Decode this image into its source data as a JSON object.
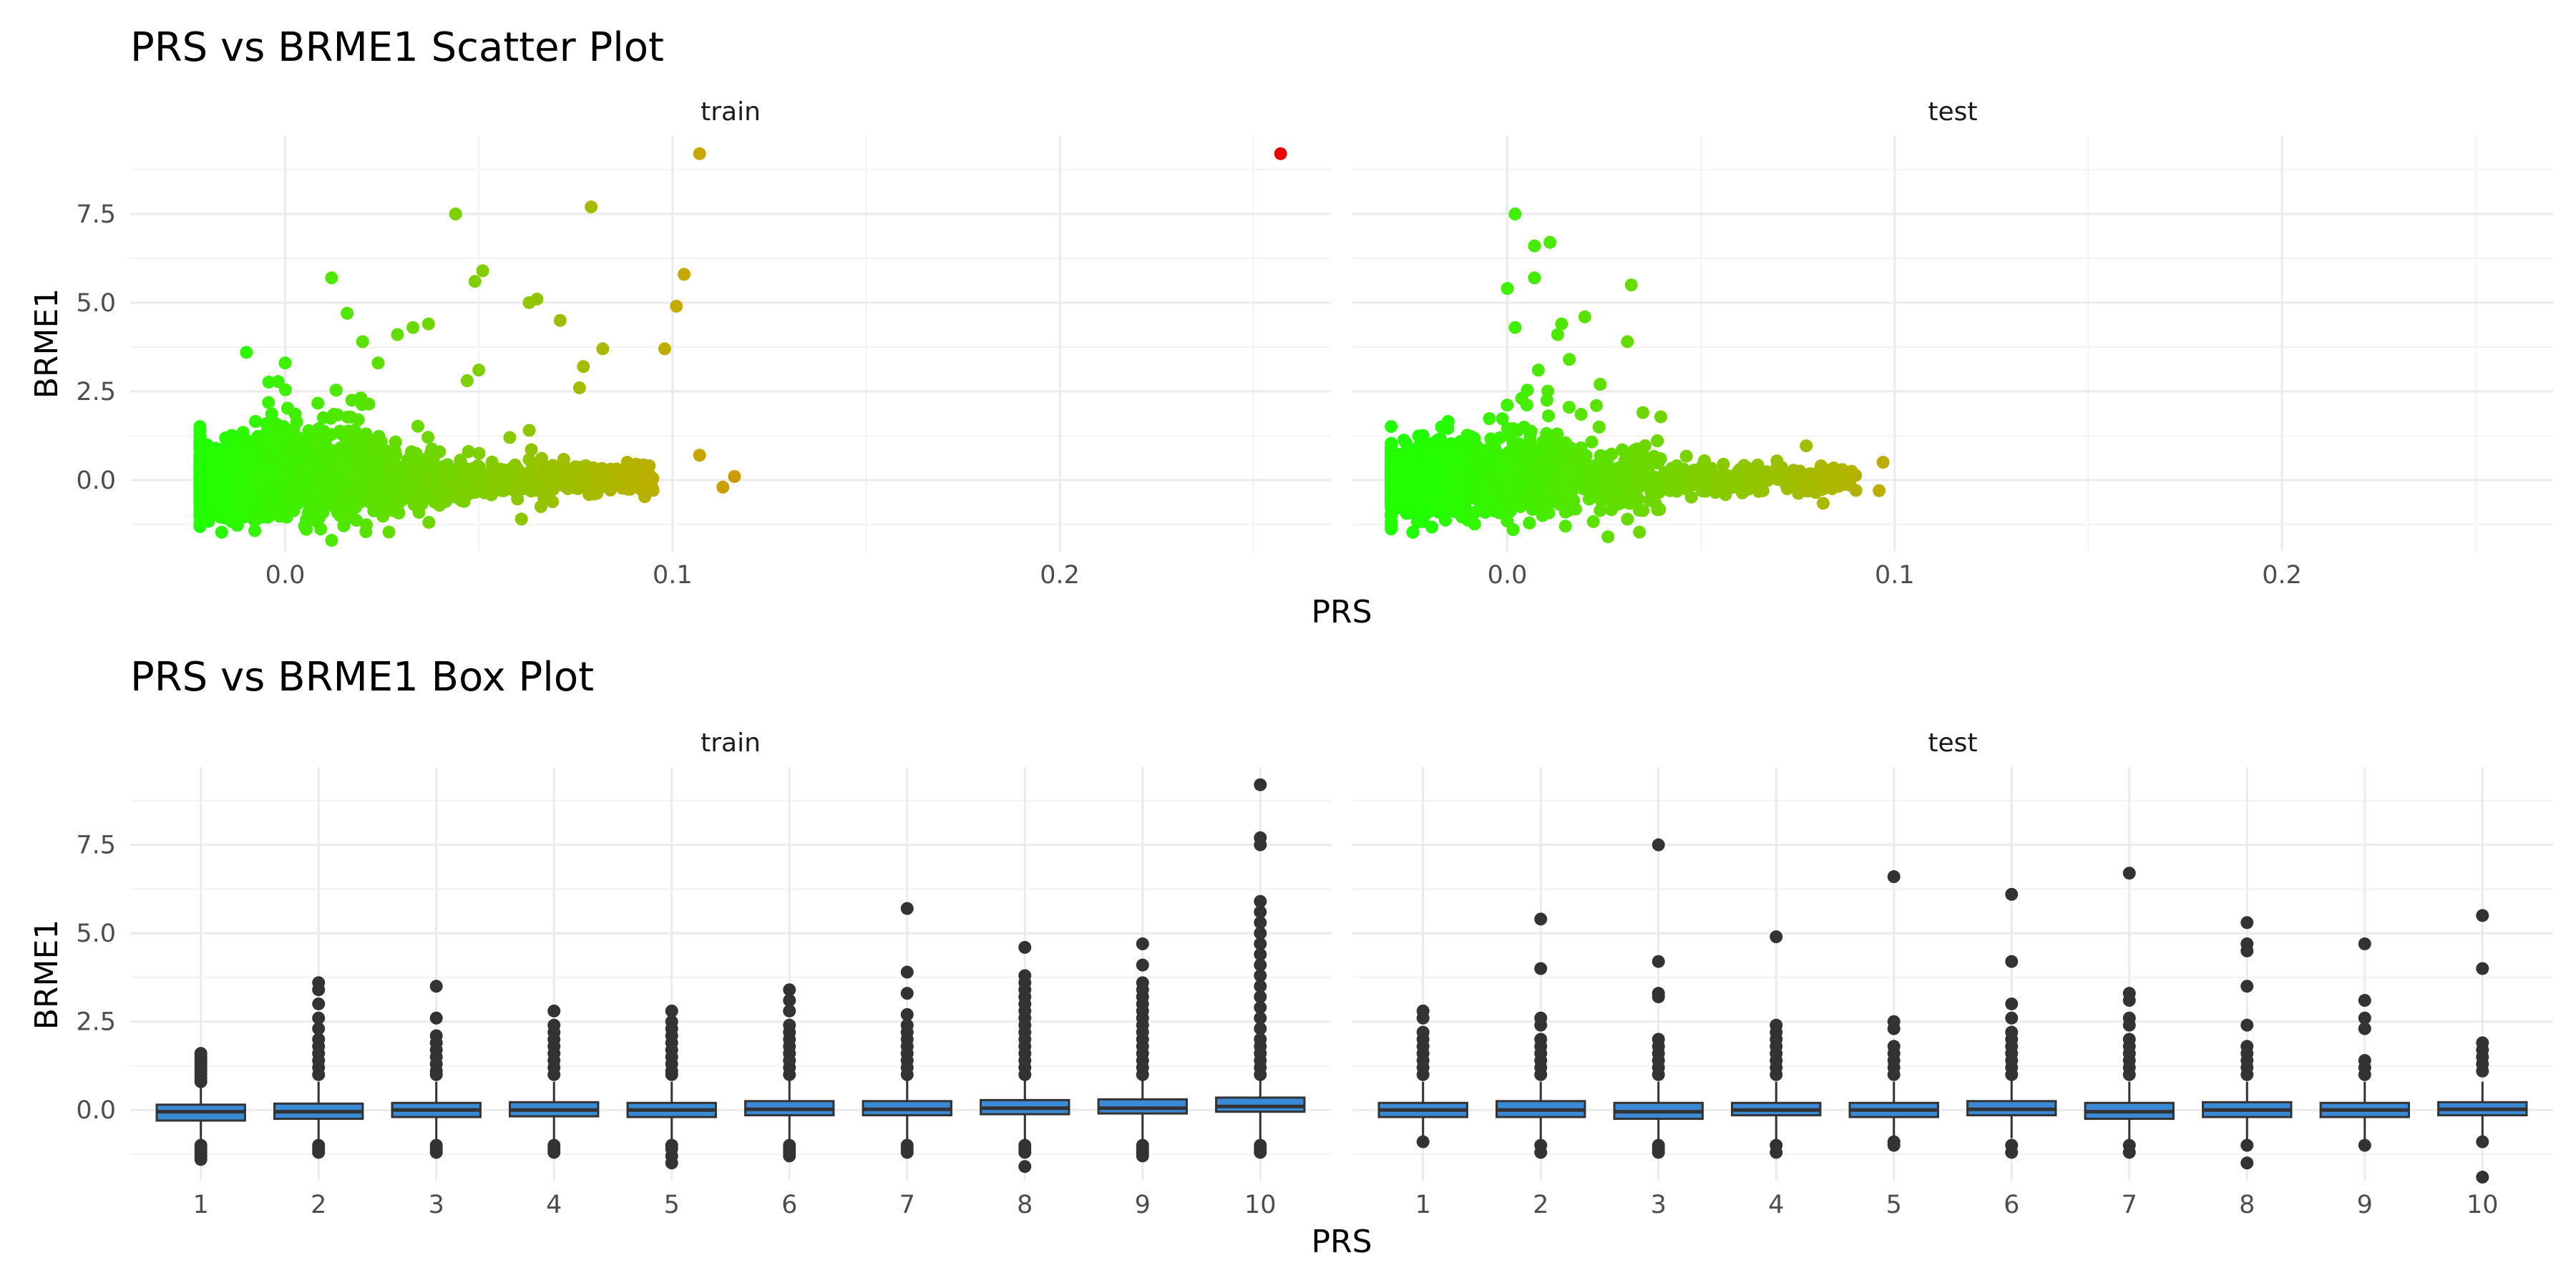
{
  "chart_data": [
    {
      "type": "scatter",
      "title": "PRS vs BRME1 Scatter Plot",
      "xlabel": "PRS",
      "ylabel": "BRME1",
      "facets": [
        "train",
        "test"
      ],
      "xlim": [
        -0.04,
        0.27
      ],
      "ylim": [
        -2.0,
        9.7
      ],
      "x_ticks": [
        "0.0",
        "0.1",
        "0.2"
      ],
      "y_ticks": [
        "0.0",
        "2.5",
        "5.0",
        "7.5"
      ],
      "color_scale": {
        "low": "#22ff00",
        "high": "#ee0000"
      },
      "grid": true,
      "series": [
        {
          "facet": "train",
          "points": [
            [
              0.257,
              9.2
            ],
            [
              0.107,
              9.2
            ],
            [
              0.079,
              7.7
            ],
            [
              0.044,
              7.5
            ],
            [
              0.103,
              5.8
            ],
            [
              0.012,
              5.7
            ],
            [
              0.051,
              5.9
            ],
            [
              0.049,
              5.6
            ],
            [
              0.063,
              5.0
            ],
            [
              0.065,
              5.1
            ],
            [
              0.101,
              4.9
            ],
            [
              0.071,
              4.5
            ],
            [
              0.037,
              4.4
            ],
            [
              0.033,
              4.3
            ],
            [
              0.029,
              4.1
            ],
            [
              0.016,
              4.7
            ],
            [
              0.098,
              3.7
            ],
            [
              0.082,
              3.7
            ],
            [
              0.077,
              3.2
            ],
            [
              0.076,
              2.6
            ],
            [
              0.05,
              3.1
            ],
            [
              0.047,
              2.8
            ],
            [
              0.063,
              1.4
            ],
            [
              0.058,
              1.2
            ],
            [
              0.107,
              0.7
            ],
            [
              0.116,
              0.1
            ],
            [
              0.113,
              -0.2
            ],
            [
              0.094,
              0.4
            ],
            [
              0.061,
              -1.1
            ],
            [
              0.012,
              -1.7
            ],
            [
              0.005,
              -1.3
            ],
            [
              -0.01,
              3.6
            ],
            [
              0.0,
              3.3
            ],
            [
              0.02,
              3.9
            ],
            [
              0.024,
              3.3
            ]
          ]
        },
        {
          "facet": "test",
          "points": [
            [
              0.002,
              7.5
            ],
            [
              0.011,
              6.7
            ],
            [
              0.007,
              6.6
            ],
            [
              0.007,
              5.7
            ],
            [
              0.032,
              5.5
            ],
            [
              0.0,
              5.4
            ],
            [
              0.02,
              4.6
            ],
            [
              0.014,
              4.4
            ],
            [
              0.002,
              4.3
            ],
            [
              0.013,
              4.1
            ],
            [
              0.031,
              3.9
            ],
            [
              0.016,
              3.4
            ],
            [
              0.008,
              3.1
            ],
            [
              0.023,
              2.1
            ],
            [
              0.035,
              1.9
            ],
            [
              -0.017,
              1.5
            ],
            [
              -0.026,
              0.3
            ],
            [
              0.097,
              0.5
            ],
            [
              0.096,
              -0.3
            ],
            [
              0.081,
              0.4
            ],
            [
              0.026,
              -1.6
            ],
            [
              0.015,
              -1.3
            ],
            [
              0.066,
              -0.3
            ],
            [
              0.06,
              0.3
            ]
          ]
        }
      ],
      "dense_cloud": {
        "train": {
          "x_range": [
            -0.022,
            0.095
          ],
          "y_center": 0.0,
          "y_spread": 0.5
        },
        "test": {
          "x_range": [
            -0.03,
            0.09
          ],
          "y_center": 0.0,
          "y_spread": 0.5
        }
      }
    },
    {
      "type": "box",
      "title": "PRS vs BRME1 Box Plot",
      "xlabel": "PRS",
      "ylabel": "BRME1",
      "facets": [
        "train",
        "test"
      ],
      "ylim": [
        -2.0,
        9.7
      ],
      "y_ticks": [
        "0.0",
        "2.5",
        "5.0",
        "7.5"
      ],
      "categories": [
        "1",
        "2",
        "3",
        "4",
        "5",
        "6",
        "7",
        "8",
        "9",
        "10"
      ],
      "fill_color": "#3a8ad6",
      "grid": true,
      "series": [
        {
          "facet": "train",
          "boxes": [
            {
              "q1": -0.3,
              "median": -0.05,
              "q3": 0.15,
              "wlo": -0.9,
              "whi": 0.7,
              "outliers": [
                1.6,
                1.5,
                1.4,
                1.3,
                1.2,
                1.1,
                1.0,
                0.9,
                0.8,
                -1.0,
                -1.1,
                -1.2,
                -1.3,
                -1.4
              ]
            },
            {
              "q1": -0.25,
              "median": -0.05,
              "q3": 0.18,
              "wlo": -0.9,
              "whi": 0.8,
              "outliers": [
                3.6,
                3.4,
                3.0,
                2.6,
                2.3,
                2.0,
                1.8,
                1.6,
                1.4,
                1.2,
                1.0,
                -1.0,
                -1.1,
                -1.2
              ]
            },
            {
              "q1": -0.2,
              "median": 0.0,
              "q3": 0.2,
              "wlo": -0.9,
              "whi": 0.8,
              "outliers": [
                3.5,
                2.6,
                2.1,
                1.9,
                1.7,
                1.5,
                1.3,
                1.1,
                1.0,
                -1.0,
                -1.1,
                -1.2
              ]
            },
            {
              "q1": -0.18,
              "median": 0.0,
              "q3": 0.22,
              "wlo": -0.9,
              "whi": 0.8,
              "outliers": [
                2.8,
                2.4,
                2.2,
                2.0,
                1.8,
                1.6,
                1.4,
                1.2,
                1.0,
                -1.0,
                -1.1,
                -1.2
              ]
            },
            {
              "q1": -0.2,
              "median": 0.0,
              "q3": 0.2,
              "wlo": -0.9,
              "whi": 0.8,
              "outliers": [
                2.8,
                2.5,
                2.3,
                2.1,
                1.9,
                1.7,
                1.5,
                1.3,
                1.1,
                1.0,
                -1.0,
                -1.1,
                -1.3,
                -1.5
              ]
            },
            {
              "q1": -0.15,
              "median": 0.02,
              "q3": 0.25,
              "wlo": -0.9,
              "whi": 0.9,
              "outliers": [
                3.4,
                3.1,
                2.8,
                2.4,
                2.2,
                2.0,
                1.8,
                1.6,
                1.4,
                1.2,
                1.0,
                -1.0,
                -1.1,
                -1.2,
                -1.3
              ]
            },
            {
              "q1": -0.15,
              "median": 0.02,
              "q3": 0.25,
              "wlo": -0.9,
              "whi": 0.9,
              "outliers": [
                5.7,
                3.9,
                3.3,
                2.7,
                2.4,
                2.2,
                2.0,
                1.8,
                1.6,
                1.4,
                1.2,
                1.0,
                -1.0,
                -1.1,
                -1.2
              ]
            },
            {
              "q1": -0.12,
              "median": 0.05,
              "q3": 0.28,
              "wlo": -0.9,
              "whi": 0.9,
              "outliers": [
                4.6,
                3.8,
                3.6,
                3.4,
                3.2,
                3.0,
                2.8,
                2.6,
                2.4,
                2.2,
                2.0,
                1.8,
                1.6,
                1.4,
                1.2,
                1.0,
                -1.0,
                -1.1,
                -1.2,
                -1.6
              ]
            },
            {
              "q1": -0.1,
              "median": 0.05,
              "q3": 0.3,
              "wlo": -0.9,
              "whi": 0.9,
              "outliers": [
                4.7,
                4.1,
                3.6,
                3.4,
                3.2,
                3.0,
                2.8,
                2.6,
                2.4,
                2.2,
                2.0,
                1.8,
                1.6,
                1.4,
                1.2,
                1.0,
                -1.0,
                -1.1,
                -1.2,
                -1.3
              ]
            },
            {
              "q1": -0.05,
              "median": 0.1,
              "q3": 0.35,
              "wlo": -0.9,
              "whi": 0.9,
              "outliers": [
                9.2,
                7.7,
                7.5,
                5.9,
                5.6,
                5.3,
                5.0,
                4.7,
                4.4,
                4.1,
                3.8,
                3.5,
                3.2,
                2.9,
                2.6,
                2.3,
                2.0,
                1.8,
                1.6,
                1.4,
                1.2,
                1.0,
                -1.0,
                -1.1,
                -1.2
              ]
            }
          ]
        },
        {
          "facet": "test",
          "boxes": [
            {
              "q1": -0.2,
              "median": 0.0,
              "q3": 0.2,
              "wlo": -0.8,
              "whi": 0.8,
              "outliers": [
                2.8,
                2.6,
                2.2,
                2.0,
                1.8,
                1.6,
                1.4,
                1.2,
                1.0,
                -0.9
              ]
            },
            {
              "q1": -0.2,
              "median": 0.0,
              "q3": 0.25,
              "wlo": -0.9,
              "whi": 0.8,
              "outliers": [
                5.4,
                4.0,
                2.6,
                2.4,
                2.0,
                1.8,
                1.6,
                1.4,
                1.2,
                1.0,
                -1.0,
                -1.2
              ]
            },
            {
              "q1": -0.25,
              "median": -0.05,
              "q3": 0.2,
              "wlo": -0.9,
              "whi": 0.8,
              "outliers": [
                7.5,
                4.2,
                3.3,
                3.2,
                2.0,
                1.8,
                1.6,
                1.4,
                1.2,
                1.0,
                -1.0,
                -1.1,
                -1.2
              ]
            },
            {
              "q1": -0.15,
              "median": 0.0,
              "q3": 0.2,
              "wlo": -0.9,
              "whi": 0.8,
              "outliers": [
                4.9,
                2.4,
                2.2,
                2.0,
                1.8,
                1.6,
                1.4,
                1.2,
                1.0,
                -1.0,
                -1.2
              ]
            },
            {
              "q1": -0.2,
              "median": 0.0,
              "q3": 0.2,
              "wlo": -0.8,
              "whi": 0.8,
              "outliers": [
                6.6,
                2.5,
                2.3,
                1.8,
                1.6,
                1.4,
                1.2,
                1.0,
                -0.9,
                -1.0
              ]
            },
            {
              "q1": -0.15,
              "median": 0.02,
              "q3": 0.25,
              "wlo": -0.8,
              "whi": 0.9,
              "outliers": [
                6.1,
                4.2,
                3.0,
                2.6,
                2.2,
                2.0,
                1.8,
                1.6,
                1.4,
                1.2,
                1.0,
                -1.0,
                -1.2
              ]
            },
            {
              "q1": -0.25,
              "median": -0.05,
              "q3": 0.2,
              "wlo": -0.9,
              "whi": 0.8,
              "outliers": [
                6.7,
                3.3,
                3.1,
                2.6,
                2.4,
                2.0,
                1.8,
                1.6,
                1.4,
                1.2,
                1.0,
                -1.0,
                -1.2
              ]
            },
            {
              "q1": -0.2,
              "median": 0.0,
              "q3": 0.22,
              "wlo": -0.9,
              "whi": 0.8,
              "outliers": [
                5.3,
                4.7,
                4.5,
                3.5,
                2.4,
                1.8,
                1.6,
                1.4,
                1.2,
                1.0,
                -1.0,
                -1.5
              ]
            },
            {
              "q1": -0.2,
              "median": 0.0,
              "q3": 0.2,
              "wlo": -0.9,
              "whi": 0.8,
              "outliers": [
                4.7,
                3.1,
                2.6,
                2.3,
                1.4,
                1.2,
                1.0,
                -1.0
              ]
            },
            {
              "q1": -0.15,
              "median": 0.02,
              "q3": 0.22,
              "wlo": -0.9,
              "whi": 0.8,
              "outliers": [
                5.5,
                4.0,
                1.9,
                1.7,
                1.5,
                1.3,
                1.1,
                -0.9,
                -1.9
              ]
            }
          ]
        }
      ]
    }
  ]
}
